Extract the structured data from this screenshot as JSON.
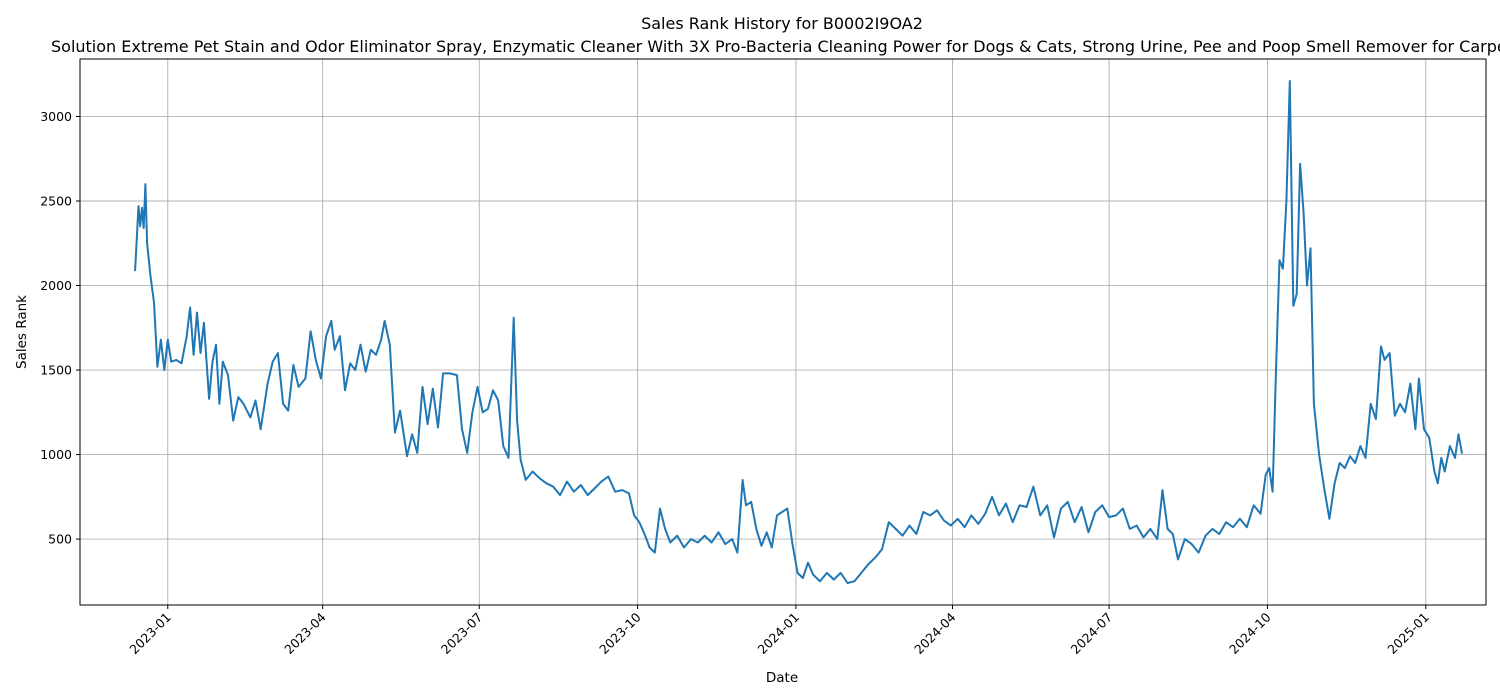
{
  "chart_data": {
    "type": "line",
    "title": "Sales Rank History for B0002I9OA2",
    "subtitle": "Solution Extreme Pet Stain and Odor Eliminator Spray, Enzymatic Cleaner With 3X Pro-Bacteria Cleaning Power for Dogs & Cats, Strong Urine, Pee and Poop Smell Remover for Carpet",
    "xlabel": "Date",
    "ylabel": "Sales Rank",
    "xlim": [
      "2022-11-11",
      "2025-02-05"
    ],
    "ylim": [
      110,
      3340
    ],
    "x_ticks": [
      "2023-01",
      "2023-04",
      "2023-07",
      "2023-10",
      "2024-01",
      "2024-04",
      "2024-07",
      "2024-10",
      "2025-01"
    ],
    "y_ticks": [
      500,
      1000,
      1500,
      2000,
      2500,
      3000
    ],
    "grid": true,
    "legend": "none",
    "series": [
      {
        "color": "#1f77b4",
        "points": [
          [
            "2022-12-13",
            2090
          ],
          [
            "2022-12-15",
            2470
          ],
          [
            "2022-12-16",
            2350
          ],
          [
            "2022-12-17",
            2460
          ],
          [
            "2022-12-18",
            2340
          ],
          [
            "2022-12-19",
            2600
          ],
          [
            "2022-12-20",
            2250
          ],
          [
            "2022-12-22",
            2050
          ],
          [
            "2022-12-24",
            1900
          ],
          [
            "2022-12-26",
            1520
          ],
          [
            "2022-12-28",
            1680
          ],
          [
            "2022-12-30",
            1500
          ],
          [
            "2023-01-01",
            1680
          ],
          [
            "2023-01-03",
            1550
          ],
          [
            "2023-01-06",
            1560
          ],
          [
            "2023-01-09",
            1540
          ],
          [
            "2023-01-12",
            1700
          ],
          [
            "2023-01-14",
            1870
          ],
          [
            "2023-01-16",
            1590
          ],
          [
            "2023-01-18",
            1840
          ],
          [
            "2023-01-20",
            1600
          ],
          [
            "2023-01-22",
            1780
          ],
          [
            "2023-01-25",
            1330
          ],
          [
            "2023-01-27",
            1550
          ],
          [
            "2023-01-29",
            1650
          ],
          [
            "2023-01-31",
            1300
          ],
          [
            "2023-02-02",
            1550
          ],
          [
            "2023-02-05",
            1470
          ],
          [
            "2023-02-08",
            1200
          ],
          [
            "2023-02-11",
            1340
          ],
          [
            "2023-02-14",
            1300
          ],
          [
            "2023-02-18",
            1220
          ],
          [
            "2023-02-21",
            1320
          ],
          [
            "2023-02-24",
            1150
          ],
          [
            "2023-02-28",
            1420
          ],
          [
            "2023-03-03",
            1550
          ],
          [
            "2023-03-06",
            1600
          ],
          [
            "2023-03-09",
            1300
          ],
          [
            "2023-03-12",
            1260
          ],
          [
            "2023-03-15",
            1530
          ],
          [
            "2023-03-18",
            1400
          ],
          [
            "2023-03-22",
            1450
          ],
          [
            "2023-03-25",
            1730
          ],
          [
            "2023-03-28",
            1560
          ],
          [
            "2023-03-31",
            1450
          ],
          [
            "2023-04-03",
            1700
          ],
          [
            "2023-04-06",
            1790
          ],
          [
            "2023-04-08",
            1620
          ],
          [
            "2023-04-11",
            1700
          ],
          [
            "2023-04-14",
            1380
          ],
          [
            "2023-04-17",
            1540
          ],
          [
            "2023-04-20",
            1500
          ],
          [
            "2023-04-23",
            1650
          ],
          [
            "2023-04-26",
            1490
          ],
          [
            "2023-04-29",
            1620
          ],
          [
            "2023-05-02",
            1590
          ],
          [
            "2023-05-05",
            1680
          ],
          [
            "2023-05-07",
            1790
          ],
          [
            "2023-05-10",
            1650
          ],
          [
            "2023-05-13",
            1130
          ],
          [
            "2023-05-16",
            1260
          ],
          [
            "2023-05-20",
            990
          ],
          [
            "2023-05-23",
            1120
          ],
          [
            "2023-05-26",
            1010
          ],
          [
            "2023-05-29",
            1400
          ],
          [
            "2023-06-01",
            1180
          ],
          [
            "2023-06-04",
            1390
          ],
          [
            "2023-06-07",
            1160
          ],
          [
            "2023-06-10",
            1480
          ],
          [
            "2023-06-14",
            1480
          ],
          [
            "2023-06-18",
            1470
          ],
          [
            "2023-06-21",
            1150
          ],
          [
            "2023-06-24",
            1010
          ],
          [
            "2023-06-27",
            1250
          ],
          [
            "2023-06-30",
            1400
          ],
          [
            "2023-07-03",
            1250
          ],
          [
            "2023-07-06",
            1270
          ],
          [
            "2023-07-09",
            1380
          ],
          [
            "2023-07-12",
            1320
          ],
          [
            "2023-07-15",
            1050
          ],
          [
            "2023-07-18",
            980
          ],
          [
            "2023-07-21",
            1810
          ],
          [
            "2023-07-23",
            1200
          ],
          [
            "2023-07-25",
            970
          ],
          [
            "2023-07-28",
            850
          ],
          [
            "2023-08-01",
            900
          ],
          [
            "2023-08-05",
            860
          ],
          [
            "2023-08-09",
            830
          ],
          [
            "2023-08-13",
            810
          ],
          [
            "2023-08-17",
            760
          ],
          [
            "2023-08-21",
            840
          ],
          [
            "2023-08-25",
            780
          ],
          [
            "2023-08-29",
            820
          ],
          [
            "2023-09-02",
            760
          ],
          [
            "2023-09-06",
            800
          ],
          [
            "2023-09-10",
            840
          ],
          [
            "2023-09-14",
            870
          ],
          [
            "2023-09-18",
            780
          ],
          [
            "2023-09-22",
            790
          ],
          [
            "2023-09-26",
            770
          ],
          [
            "2023-09-29",
            640
          ],
          [
            "2023-10-02",
            600
          ],
          [
            "2023-10-05",
            530
          ],
          [
            "2023-10-08",
            450
          ],
          [
            "2023-10-11",
            420
          ],
          [
            "2023-10-14",
            680
          ],
          [
            "2023-10-17",
            560
          ],
          [
            "2023-10-20",
            480
          ],
          [
            "2023-10-24",
            520
          ],
          [
            "2023-10-28",
            450
          ],
          [
            "2023-11-01",
            500
          ],
          [
            "2023-11-05",
            480
          ],
          [
            "2023-11-09",
            520
          ],
          [
            "2023-11-13",
            480
          ],
          [
            "2023-11-17",
            540
          ],
          [
            "2023-11-21",
            470
          ],
          [
            "2023-11-25",
            500
          ],
          [
            "2023-11-28",
            420
          ],
          [
            "2023-12-01",
            850
          ],
          [
            "2023-12-03",
            700
          ],
          [
            "2023-12-06",
            720
          ],
          [
            "2023-12-09",
            560
          ],
          [
            "2023-12-12",
            460
          ],
          [
            "2023-12-15",
            540
          ],
          [
            "2023-12-18",
            450
          ],
          [
            "2023-12-21",
            640
          ],
          [
            "2023-12-24",
            660
          ],
          [
            "2023-12-27",
            680
          ],
          [
            "2023-12-30",
            470
          ],
          [
            "2024-01-02",
            300
          ],
          [
            "2024-01-05",
            270
          ],
          [
            "2024-01-08",
            360
          ],
          [
            "2024-01-11",
            290
          ],
          [
            "2024-01-15",
            250
          ],
          [
            "2024-01-19",
            300
          ],
          [
            "2024-01-23",
            260
          ],
          [
            "2024-01-27",
            300
          ],
          [
            "2024-01-31",
            240
          ],
          [
            "2024-02-04",
            250
          ],
          [
            "2024-02-08",
            300
          ],
          [
            "2024-02-12",
            350
          ],
          [
            "2024-02-16",
            390
          ],
          [
            "2024-02-20",
            440
          ],
          [
            "2024-02-24",
            600
          ],
          [
            "2024-02-28",
            560
          ],
          [
            "2024-03-03",
            520
          ],
          [
            "2024-03-07",
            580
          ],
          [
            "2024-03-11",
            530
          ],
          [
            "2024-03-15",
            660
          ],
          [
            "2024-03-19",
            640
          ],
          [
            "2024-03-23",
            670
          ],
          [
            "2024-03-27",
            610
          ],
          [
            "2024-03-31",
            580
          ],
          [
            "2024-04-04",
            620
          ],
          [
            "2024-04-08",
            570
          ],
          [
            "2024-04-12",
            640
          ],
          [
            "2024-04-16",
            590
          ],
          [
            "2024-04-20",
            650
          ],
          [
            "2024-04-24",
            750
          ],
          [
            "2024-04-28",
            640
          ],
          [
            "2024-05-02",
            710
          ],
          [
            "2024-05-06",
            600
          ],
          [
            "2024-05-10",
            700
          ],
          [
            "2024-05-14",
            690
          ],
          [
            "2024-05-18",
            810
          ],
          [
            "2024-05-22",
            640
          ],
          [
            "2024-05-26",
            700
          ],
          [
            "2024-05-30",
            510
          ],
          [
            "2024-06-03",
            680
          ],
          [
            "2024-06-07",
            720
          ],
          [
            "2024-06-11",
            600
          ],
          [
            "2024-06-15",
            690
          ],
          [
            "2024-06-19",
            540
          ],
          [
            "2024-06-23",
            660
          ],
          [
            "2024-06-27",
            700
          ],
          [
            "2024-07-01",
            630
          ],
          [
            "2024-07-05",
            640
          ],
          [
            "2024-07-09",
            680
          ],
          [
            "2024-07-13",
            560
          ],
          [
            "2024-07-17",
            580
          ],
          [
            "2024-07-21",
            510
          ],
          [
            "2024-07-25",
            560
          ],
          [
            "2024-07-29",
            500
          ],
          [
            "2024-08-01",
            790
          ],
          [
            "2024-08-04",
            560
          ],
          [
            "2024-08-07",
            530
          ],
          [
            "2024-08-10",
            380
          ],
          [
            "2024-08-14",
            500
          ],
          [
            "2024-08-18",
            470
          ],
          [
            "2024-08-22",
            420
          ],
          [
            "2024-08-26",
            520
          ],
          [
            "2024-08-30",
            560
          ],
          [
            "2024-09-03",
            530
          ],
          [
            "2024-09-07",
            600
          ],
          [
            "2024-09-11",
            570
          ],
          [
            "2024-09-15",
            620
          ],
          [
            "2024-09-19",
            570
          ],
          [
            "2024-09-23",
            700
          ],
          [
            "2024-09-27",
            650
          ],
          [
            "2024-09-30",
            880
          ],
          [
            "2024-10-02",
            920
          ],
          [
            "2024-10-04",
            780
          ],
          [
            "2024-10-06",
            1500
          ],
          [
            "2024-10-08",
            2150
          ],
          [
            "2024-10-10",
            2100
          ],
          [
            "2024-10-12",
            2500
          ],
          [
            "2024-10-14",
            3210
          ],
          [
            "2024-10-16",
            1880
          ],
          [
            "2024-10-18",
            1950
          ],
          [
            "2024-10-20",
            2720
          ],
          [
            "2024-10-22",
            2430
          ],
          [
            "2024-10-24",
            2000
          ],
          [
            "2024-10-26",
            2220
          ],
          [
            "2024-10-28",
            1300
          ],
          [
            "2024-10-31",
            1000
          ],
          [
            "2024-11-03",
            800
          ],
          [
            "2024-11-06",
            620
          ],
          [
            "2024-11-09",
            830
          ],
          [
            "2024-11-12",
            950
          ],
          [
            "2024-11-15",
            920
          ],
          [
            "2024-11-18",
            990
          ],
          [
            "2024-11-21",
            950
          ],
          [
            "2024-11-24",
            1050
          ],
          [
            "2024-11-27",
            980
          ],
          [
            "2024-11-30",
            1300
          ],
          [
            "2024-12-03",
            1210
          ],
          [
            "2024-12-06",
            1640
          ],
          [
            "2024-12-08",
            1560
          ],
          [
            "2024-12-11",
            1600
          ],
          [
            "2024-12-14",
            1230
          ],
          [
            "2024-12-17",
            1300
          ],
          [
            "2024-12-20",
            1250
          ],
          [
            "2024-12-23",
            1420
          ],
          [
            "2024-12-26",
            1150
          ],
          [
            "2024-12-28",
            1450
          ],
          [
            "2024-12-31",
            1150
          ],
          [
            "2025-01-03",
            1100
          ],
          [
            "2025-01-06",
            900
          ],
          [
            "2025-01-08",
            830
          ],
          [
            "2025-01-10",
            980
          ],
          [
            "2025-01-12",
            900
          ],
          [
            "2025-01-15",
            1050
          ],
          [
            "2025-01-18",
            980
          ],
          [
            "2025-01-20",
            1120
          ],
          [
            "2025-01-22",
            1010
          ]
        ]
      }
    ]
  }
}
